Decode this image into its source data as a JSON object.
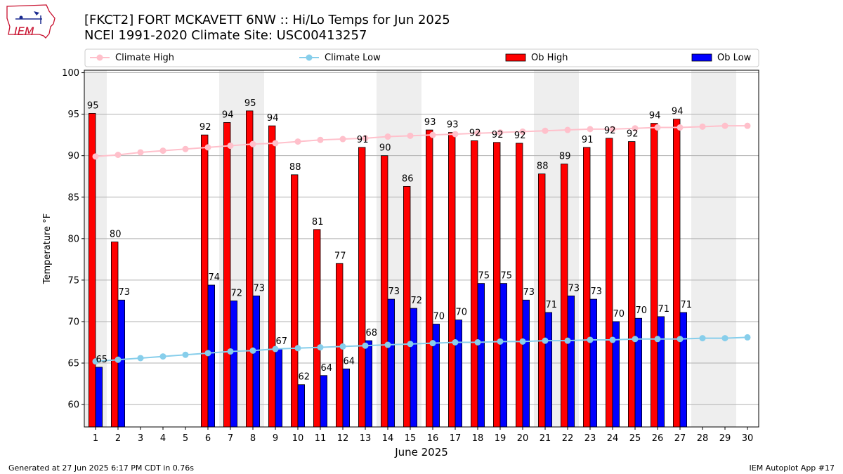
{
  "header": {
    "title_line1": "[FKCT2] FORT MCKAVETT 6NW :: Hi/Lo Temps for Jun 2025",
    "title_line2": "NCEI 1991-2020 Climate Site: USC00413257",
    "logo_text": "IEM"
  },
  "footer": {
    "left": "Generated at 27 Jun 2025 6:17 PM CDT in 0.76s",
    "right": "IEM Autoplot App #17"
  },
  "colors": {
    "climate_high": "#ffc0cb",
    "climate_low": "#87ceeb",
    "ob_high": "#ff0000",
    "ob_low": "#0000ff",
    "weekend_shade": "#eeeeee",
    "grid": "#b0b0b0"
  },
  "chart_data": {
    "type": "bar",
    "xlabel": "June 2025",
    "ylabel": "Temperature °F",
    "ylim": [
      57.3,
      100.3
    ],
    "yticks": [
      60,
      65,
      70,
      75,
      80,
      85,
      90,
      95,
      100
    ],
    "grid": "horizontal",
    "legend_position": "top",
    "x": [
      1,
      2,
      3,
      4,
      5,
      6,
      7,
      8,
      9,
      10,
      11,
      12,
      13,
      14,
      15,
      16,
      17,
      18,
      19,
      20,
      21,
      22,
      23,
      24,
      25,
      26,
      27,
      28,
      29,
      30
    ],
    "shaded_days": [
      1,
      7,
      8,
      14,
      15,
      21,
      22,
      28,
      29
    ],
    "series": [
      {
        "name": "Ob High",
        "kind": "bar",
        "values": [
          95.1,
          79.6,
          null,
          null,
          null,
          92.5,
          94.0,
          95.4,
          93.6,
          87.7,
          81.1,
          77.0,
          91.0,
          90.0,
          86.3,
          93.1,
          92.8,
          91.8,
          91.6,
          91.5,
          87.8,
          89.0,
          91.0,
          92.1,
          91.7,
          93.9,
          94.4,
          null,
          null,
          null
        ],
        "labels": [
          "95",
          "80",
          null,
          null,
          null,
          "92",
          "94",
          "95",
          "94",
          "88",
          "81",
          "77",
          "91",
          "90",
          "86",
          "93",
          "93",
          "92",
          "92",
          "92",
          "88",
          "89",
          "91",
          "92",
          "92",
          "94",
          "94",
          null,
          null,
          null
        ]
      },
      {
        "name": "Ob Low",
        "kind": "bar",
        "values": [
          64.5,
          72.6,
          null,
          null,
          null,
          74.4,
          72.5,
          73.1,
          66.7,
          62.4,
          63.5,
          64.3,
          67.7,
          72.7,
          71.6,
          69.7,
          70.2,
          74.6,
          74.6,
          72.6,
          71.1,
          73.1,
          72.7,
          70.0,
          70.4,
          70.6,
          71.1,
          null,
          null,
          null
        ],
        "labels": [
          "65",
          "73",
          null,
          null,
          null,
          "74",
          "72",
          "73",
          "67",
          "62",
          "64",
          "64",
          "68",
          "73",
          "72",
          "70",
          "70",
          "75",
          "75",
          "73",
          "71",
          "73",
          "73",
          "70",
          "70",
          "71",
          "71",
          null,
          null,
          null
        ]
      },
      {
        "name": "Climate High",
        "kind": "line",
        "values": [
          89.9,
          90.1,
          90.4,
          90.6,
          90.8,
          91.0,
          91.2,
          91.4,
          91.5,
          91.7,
          91.9,
          92.0,
          92.1,
          92.3,
          92.4,
          92.5,
          92.6,
          92.7,
          92.8,
          92.9,
          93.0,
          93.1,
          93.2,
          93.2,
          93.3,
          93.4,
          93.4,
          93.5,
          93.6,
          93.6
        ]
      },
      {
        "name": "Climate Low",
        "kind": "line",
        "values": [
          65.2,
          65.4,
          65.6,
          65.8,
          66.0,
          66.2,
          66.4,
          66.5,
          66.7,
          66.8,
          66.9,
          67.0,
          67.1,
          67.2,
          67.3,
          67.4,
          67.5,
          67.5,
          67.6,
          67.6,
          67.7,
          67.7,
          67.8,
          67.8,
          67.9,
          67.9,
          67.9,
          68.0,
          68.0,
          68.1
        ]
      }
    ]
  }
}
